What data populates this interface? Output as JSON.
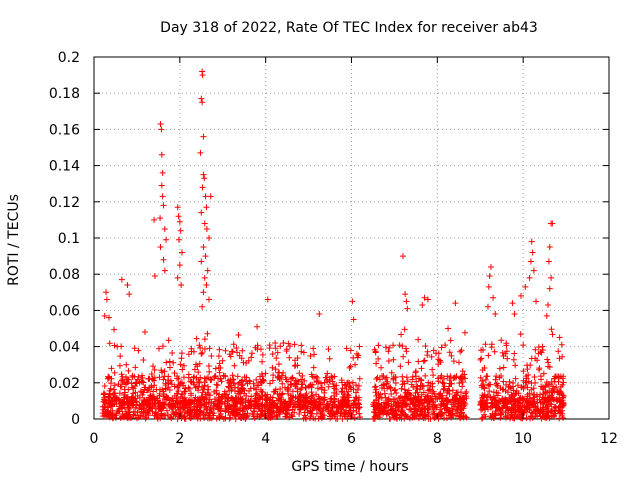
{
  "chart_data": {
    "type": "scatter",
    "title": "Day 318 of 2022, Rate Of TEC Index for receiver ab43",
    "xlabel": "GPS time / hours",
    "ylabel": "ROTI / TECUs",
    "xlim": [
      0,
      12
    ],
    "ylim": [
      0,
      0.2
    ],
    "x_ticks": [
      0,
      2,
      4,
      6,
      8,
      10,
      12
    ],
    "y_ticks": [
      0,
      0.02,
      0.04,
      0.06,
      0.08,
      0.1,
      0.12,
      0.14,
      0.16,
      0.18,
      0.2
    ],
    "x_tick_labels": [
      "0",
      "2",
      "4",
      "6",
      "8",
      "10",
      "12"
    ],
    "y_tick_labels": [
      "0",
      "0.02",
      "0.04",
      "0.06",
      "0.08",
      "0.1",
      "0.12",
      "0.14",
      "0.16",
      "0.18",
      "0.2"
    ],
    "grid": true,
    "marker": "+",
    "color": "#ff0000",
    "data_segments": [
      {
        "start": 0.2,
        "end": 6.2
      },
      {
        "start": 6.5,
        "end": 8.7
      },
      {
        "start": 9.0,
        "end": 10.95
      }
    ],
    "series": [
      {
        "name": "ROTI",
        "points": [
          [
            1.55,
            0.163
          ],
          [
            1.57,
            0.16
          ],
          [
            1.58,
            0.146
          ],
          [
            1.6,
            0.136
          ],
          [
            1.58,
            0.129
          ],
          [
            1.6,
            0.123
          ],
          [
            1.62,
            0.118
          ],
          [
            1.54,
            0.111
          ],
          [
            1.4,
            0.11
          ],
          [
            1.65,
            0.105
          ],
          [
            1.68,
            0.099
          ],
          [
            1.55,
            0.095
          ],
          [
            1.62,
            0.088
          ],
          [
            1.65,
            0.082
          ],
          [
            1.42,
            0.079
          ],
          [
            1.95,
            0.117
          ],
          [
            1.97,
            0.112
          ],
          [
            2.0,
            0.109
          ],
          [
            2.02,
            0.104
          ],
          [
            1.98,
            0.099
          ],
          [
            2.05,
            0.092
          ],
          [
            2.0,
            0.085
          ],
          [
            1.95,
            0.078
          ],
          [
            2.03,
            0.074
          ],
          [
            2.52,
            0.192
          ],
          [
            2.53,
            0.19
          ],
          [
            2.5,
            0.177
          ],
          [
            2.52,
            0.175
          ],
          [
            2.55,
            0.156
          ],
          [
            2.48,
            0.147
          ],
          [
            2.55,
            0.135
          ],
          [
            2.57,
            0.133
          ],
          [
            2.53,
            0.128
          ],
          [
            2.6,
            0.123
          ],
          [
            2.72,
            0.123
          ],
          [
            2.62,
            0.117
          ],
          [
            2.5,
            0.114
          ],
          [
            2.58,
            0.108
          ],
          [
            2.63,
            0.105
          ],
          [
            2.68,
            0.1
          ],
          [
            2.55,
            0.095
          ],
          [
            2.6,
            0.09
          ],
          [
            2.5,
            0.087
          ],
          [
            2.65,
            0.082
          ],
          [
            2.58,
            0.078
          ],
          [
            2.62,
            0.074
          ],
          [
            2.55,
            0.07
          ],
          [
            2.68,
            0.066
          ],
          [
            2.52,
            0.062
          ],
          [
            0.28,
            0.07
          ],
          [
            0.3,
            0.066
          ],
          [
            0.65,
            0.077
          ],
          [
            0.78,
            0.074
          ],
          [
            0.82,
            0.069
          ],
          [
            0.25,
            0.057
          ],
          [
            0.35,
            0.056
          ],
          [
            4.05,
            0.066
          ],
          [
            3.8,
            0.051
          ],
          [
            5.25,
            0.058
          ],
          [
            6.02,
            0.065
          ],
          [
            6.05,
            0.055
          ],
          [
            7.2,
            0.09
          ],
          [
            7.25,
            0.069
          ],
          [
            7.28,
            0.065
          ],
          [
            7.3,
            0.061
          ],
          [
            7.7,
            0.067
          ],
          [
            7.65,
            0.063
          ],
          [
            7.78,
            0.066
          ],
          [
            8.42,
            0.064
          ],
          [
            8.25,
            0.05
          ],
          [
            9.25,
            0.084
          ],
          [
            9.22,
            0.079
          ],
          [
            9.2,
            0.073
          ],
          [
            9.3,
            0.067
          ],
          [
            9.18,
            0.062
          ],
          [
            9.35,
            0.058
          ],
          [
            10.2,
            0.098
          ],
          [
            10.22,
            0.092
          ],
          [
            10.18,
            0.087
          ],
          [
            10.25,
            0.082
          ],
          [
            10.15,
            0.078
          ],
          [
            10.05,
            0.073
          ],
          [
            9.95,
            0.068
          ],
          [
            10.3,
            0.065
          ],
          [
            10.65,
            0.108
          ],
          [
            10.68,
            0.108
          ],
          [
            10.62,
            0.095
          ],
          [
            10.6,
            0.087
          ],
          [
            10.65,
            0.078
          ],
          [
            10.62,
            0.072
          ],
          [
            10.58,
            0.063
          ],
          [
            10.55,
            0.057
          ],
          [
            9.8,
            0.058
          ],
          [
            9.75,
            0.064
          ],
          [
            10.45,
            0.04
          ],
          [
            10.85,
            0.045
          ],
          [
            10.9,
            0.041
          ]
        ]
      }
    ]
  }
}
